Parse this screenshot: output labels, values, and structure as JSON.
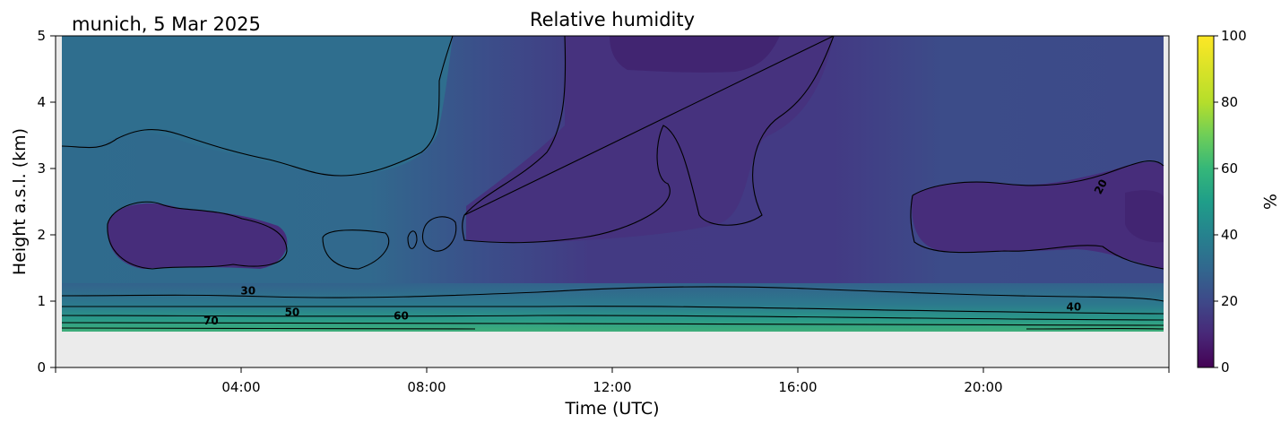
{
  "chart_data": {
    "type": "heatmap",
    "title": "Relative humidity",
    "location_label": "munich, 5 Mar 2025",
    "xlabel": "Time (UTC)",
    "ylabel": "Height a.s.l. (km)",
    "x_ticks": [
      "04:00",
      "08:00",
      "12:00",
      "16:00",
      "20:00"
    ],
    "x_tick_hours": [
      4,
      8,
      12,
      16,
      20
    ],
    "xlim_hours": [
      0,
      24
    ],
    "y_ticks": [
      "0",
      "1",
      "2",
      "3",
      "4",
      "5"
    ],
    "ylim_km": [
      0,
      5
    ],
    "data_bottom_km": 0.55,
    "colorbar": {
      "label": "%",
      "ticks": [
        "0",
        "20",
        "40",
        "60",
        "80",
        "100"
      ],
      "range": [
        0,
        100
      ],
      "colormap": "viridis"
    },
    "contour_levels": [
      20,
      30,
      40,
      50,
      60,
      70
    ],
    "contour_labels": [
      {
        "text": "30",
        "hour": 4.15,
        "km": 1.1
      },
      {
        "text": "50",
        "hour": 5.1,
        "km": 0.78
      },
      {
        "text": "70",
        "hour": 3.35,
        "km": 0.65
      },
      {
        "text": "60",
        "hour": 7.45,
        "km": 0.72
      },
      {
        "text": "40",
        "hour": 21.95,
        "km": 0.86
      },
      {
        "text": "20",
        "hour": 22.6,
        "km": 2.7
      }
    ],
    "colors": {
      "below_data": "#ebebeb",
      "high_humidity": "#3fae7a",
      "mid_humidity": "#2a7b8c",
      "low_humidity": "#433a83",
      "very_low": "#3a1f6e"
    }
  }
}
